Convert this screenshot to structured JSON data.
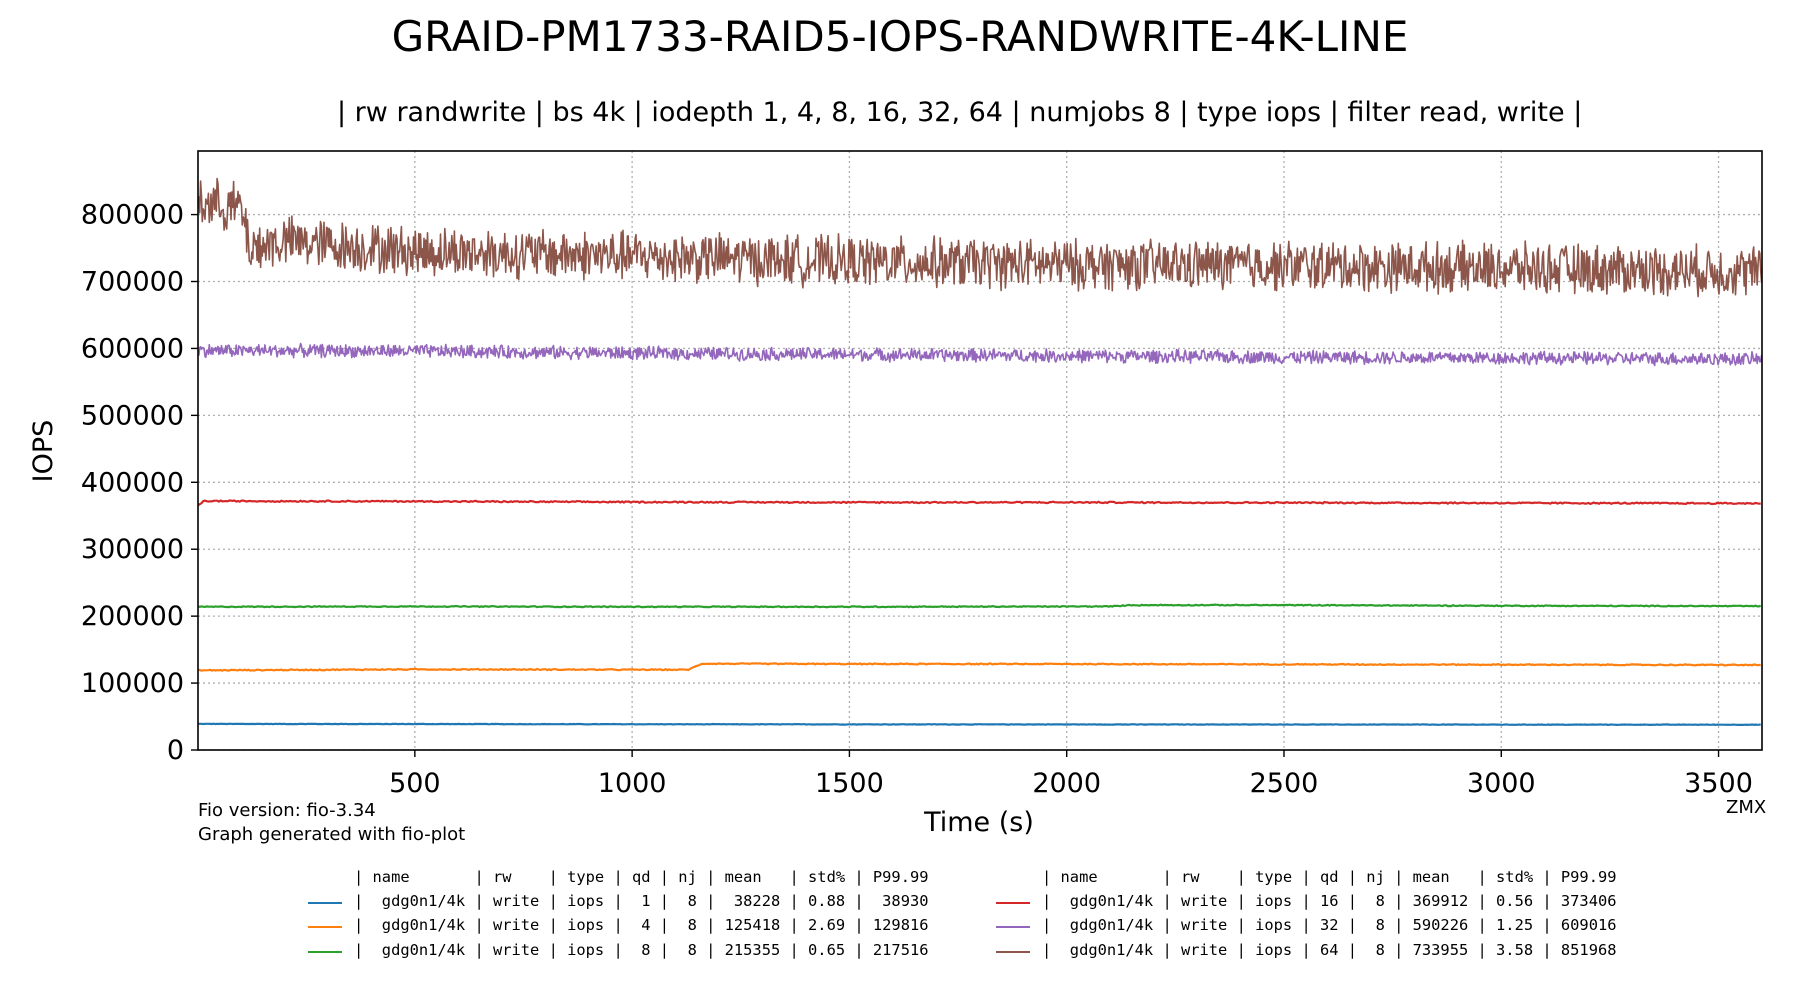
{
  "title": "GRAID-PM1733-RAID5-IOPS-RANDWRITE-4K-LINE",
  "subtitle": "| rw randwrite | bs 4k | iodepth 1, 4, 8, 16, 32, 64 | numjobs 8 | type iops | filter read, write |",
  "footnotes": {
    "fio_version": "Fio version: fio-3.34",
    "generator": "Graph generated with fio-plot",
    "credit": "ZMX"
  },
  "chart_data": {
    "type": "line",
    "xlabel": "Time (s)",
    "ylabel": "IOPS",
    "xlim": [
      1,
      3600
    ],
    "ylim": [
      0,
      895000
    ],
    "xticks": [
      500,
      1000,
      1500,
      2000,
      2500,
      3000,
      3500
    ],
    "yticks": [
      0,
      100000,
      200000,
      300000,
      400000,
      500000,
      600000,
      700000,
      800000
    ],
    "grid": true,
    "series": [
      {
        "name": "gdg0n1/4k qd 1",
        "color": "#1f77b4",
        "noise": 400,
        "points": [
          [
            1,
            39000
          ],
          [
            500,
            38800
          ],
          [
            1000,
            38500
          ],
          [
            1500,
            38300
          ],
          [
            2000,
            38200
          ],
          [
            2500,
            38100
          ],
          [
            3000,
            37900
          ],
          [
            3600,
            37800
          ]
        ]
      },
      {
        "name": "gdg0n1/4k qd 4",
        "color": "#ff7f0e",
        "noise": 900,
        "points": [
          [
            1,
            119000
          ],
          [
            500,
            120500
          ],
          [
            1000,
            120000
          ],
          [
            1130,
            120000
          ],
          [
            1160,
            129000
          ],
          [
            1500,
            128500
          ],
          [
            2000,
            128500
          ],
          [
            2500,
            128000
          ],
          [
            3000,
            127500
          ],
          [
            3600,
            127000
          ]
        ]
      },
      {
        "name": "gdg0n1/4k qd 8",
        "color": "#2ca02c",
        "noise": 800,
        "points": [
          [
            1,
            214000
          ],
          [
            500,
            214500
          ],
          [
            1000,
            214000
          ],
          [
            1500,
            214000
          ],
          [
            2100,
            214500
          ],
          [
            2150,
            216500
          ],
          [
            2500,
            216500
          ],
          [
            3000,
            215500
          ],
          [
            3600,
            215000
          ]
        ]
      },
      {
        "name": "gdg0n1/4k qd 16",
        "color": "#d62728",
        "noise": 1200,
        "points": [
          [
            1,
            365000
          ],
          [
            15,
            372000
          ],
          [
            500,
            371500
          ],
          [
            1000,
            370500
          ],
          [
            1500,
            370000
          ],
          [
            2000,
            370000
          ],
          [
            2500,
            369500
          ],
          [
            3000,
            369000
          ],
          [
            3600,
            368500
          ]
        ]
      },
      {
        "name": "gdg0n1/4k qd 32",
        "color": "#9467bd",
        "noise": 11000,
        "points": [
          [
            1,
            597000
          ],
          [
            500,
            596000
          ],
          [
            1000,
            593000
          ],
          [
            1500,
            591000
          ],
          [
            2000,
            589000
          ],
          [
            2500,
            587000
          ],
          [
            3000,
            586000
          ],
          [
            3600,
            584000
          ]
        ]
      },
      {
        "name": "gdg0n1/4k qd 64",
        "color": "#8c564b",
        "noise": 42000,
        "points": [
          [
            1,
            820000
          ],
          [
            100,
            810000
          ],
          [
            120,
            750000
          ],
          [
            200,
            760000
          ],
          [
            500,
            745000
          ],
          [
            1000,
            738000
          ],
          [
            1500,
            730000
          ],
          [
            2000,
            725000
          ],
          [
            2500,
            724000
          ],
          [
            3000,
            720000
          ],
          [
            3600,
            715000
          ]
        ]
      }
    ]
  },
  "legend": {
    "header": "| name       | rw    | type | qd | nj | mean   | std% | P99.99",
    "rows": [
      {
        "color": "#1f77b4",
        "text": "|  gdg0n1/4k | write | iops |  1 |  8 |  38228 | 0.88 |  38930"
      },
      {
        "color": "#ff7f0e",
        "text": "|  gdg0n1/4k | write | iops |  4 |  8 | 125418 | 2.69 | 129816"
      },
      {
        "color": "#2ca02c",
        "text": "|  gdg0n1/4k | write | iops |  8 |  8 | 215355 | 0.65 | 217516"
      },
      {
        "color": "#d62728",
        "text": "|  gdg0n1/4k | write | iops | 16 |  8 | 369912 | 0.56 | 373406"
      },
      {
        "color": "#9467bd",
        "text": "|  gdg0n1/4k | write | iops | 32 |  8 | 590226 | 1.25 | 609016"
      },
      {
        "color": "#8c564b",
        "text": "|  gdg0n1/4k | write | iops | 64 |  8 | 733955 | 3.58 | 851968"
      }
    ]
  }
}
